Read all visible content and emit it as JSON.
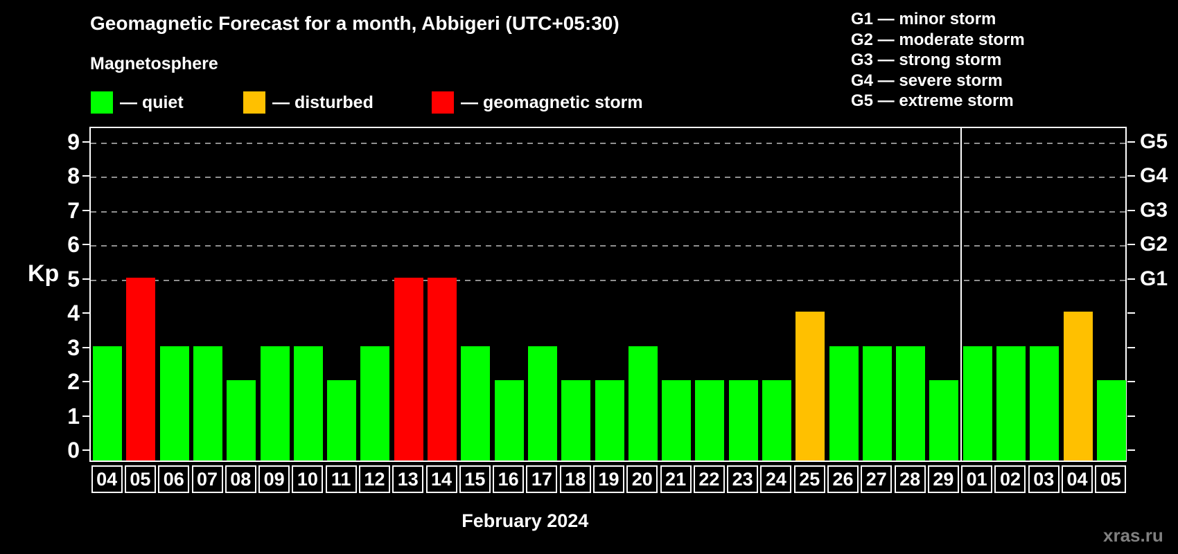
{
  "title": "Geomagnetic Forecast for a month, Abbigeri (UTC+05:30)",
  "subtitle": "Magnetosphere",
  "legend": {
    "items": [
      {
        "key": "quiet",
        "label": "— quiet",
        "color": "#00ff00"
      },
      {
        "key": "disturbed",
        "label": "— disturbed",
        "color": "#ffc000"
      },
      {
        "key": "storm",
        "label": "— geomagnetic storm",
        "color": "#ff0000"
      }
    ]
  },
  "storm_scale_legend": [
    "G1 — minor storm",
    "G2 — moderate storm",
    "G3 — strong storm",
    "G4 — severe storm",
    "G5 — extreme storm"
  ],
  "watermark": "xras.ru",
  "chart_data": {
    "type": "bar",
    "title": "Geomagnetic Forecast for a month, Abbigeri (UTC+05:30)",
    "xlabel": "February 2024",
    "ylabel": "Kp",
    "ylim": [
      0,
      9
    ],
    "yticks": [
      0,
      1,
      2,
      3,
      4,
      5,
      6,
      7,
      8,
      9
    ],
    "gridlines_at": [
      5,
      6,
      7,
      8,
      9
    ],
    "grid": "dashed, only at storm levels",
    "right_axis": [
      {
        "value": 5,
        "label": "G1"
      },
      {
        "value": 6,
        "label": "G2"
      },
      {
        "value": 7,
        "label": "G3"
      },
      {
        "value": 8,
        "label": "G4"
      },
      {
        "value": 9,
        "label": "G5"
      }
    ],
    "categories": [
      "04",
      "05",
      "06",
      "07",
      "08",
      "09",
      "10",
      "11",
      "12",
      "13",
      "14",
      "15",
      "16",
      "17",
      "18",
      "19",
      "20",
      "21",
      "22",
      "23",
      "24",
      "25",
      "26",
      "27",
      "28",
      "29",
      "01",
      "02",
      "03",
      "04",
      "05"
    ],
    "values": [
      3,
      5,
      3,
      3,
      2,
      3,
      3,
      2,
      3,
      5,
      5,
      3,
      2,
      3,
      2,
      2,
      3,
      2,
      2,
      2,
      2,
      4,
      3,
      3,
      3,
      2,
      3,
      3,
      3,
      4,
      2
    ],
    "statuses": [
      "quiet",
      "storm",
      "quiet",
      "quiet",
      "quiet",
      "quiet",
      "quiet",
      "quiet",
      "quiet",
      "storm",
      "storm",
      "quiet",
      "quiet",
      "quiet",
      "quiet",
      "quiet",
      "quiet",
      "quiet",
      "quiet",
      "quiet",
      "quiet",
      "disturbed",
      "quiet",
      "quiet",
      "quiet",
      "quiet",
      "quiet",
      "quiet",
      "quiet",
      "disturbed",
      "quiet"
    ],
    "month_separator_after_index": 25,
    "colors": {
      "quiet": "#00ff00",
      "disturbed": "#ffc000",
      "storm": "#ff0000"
    }
  }
}
